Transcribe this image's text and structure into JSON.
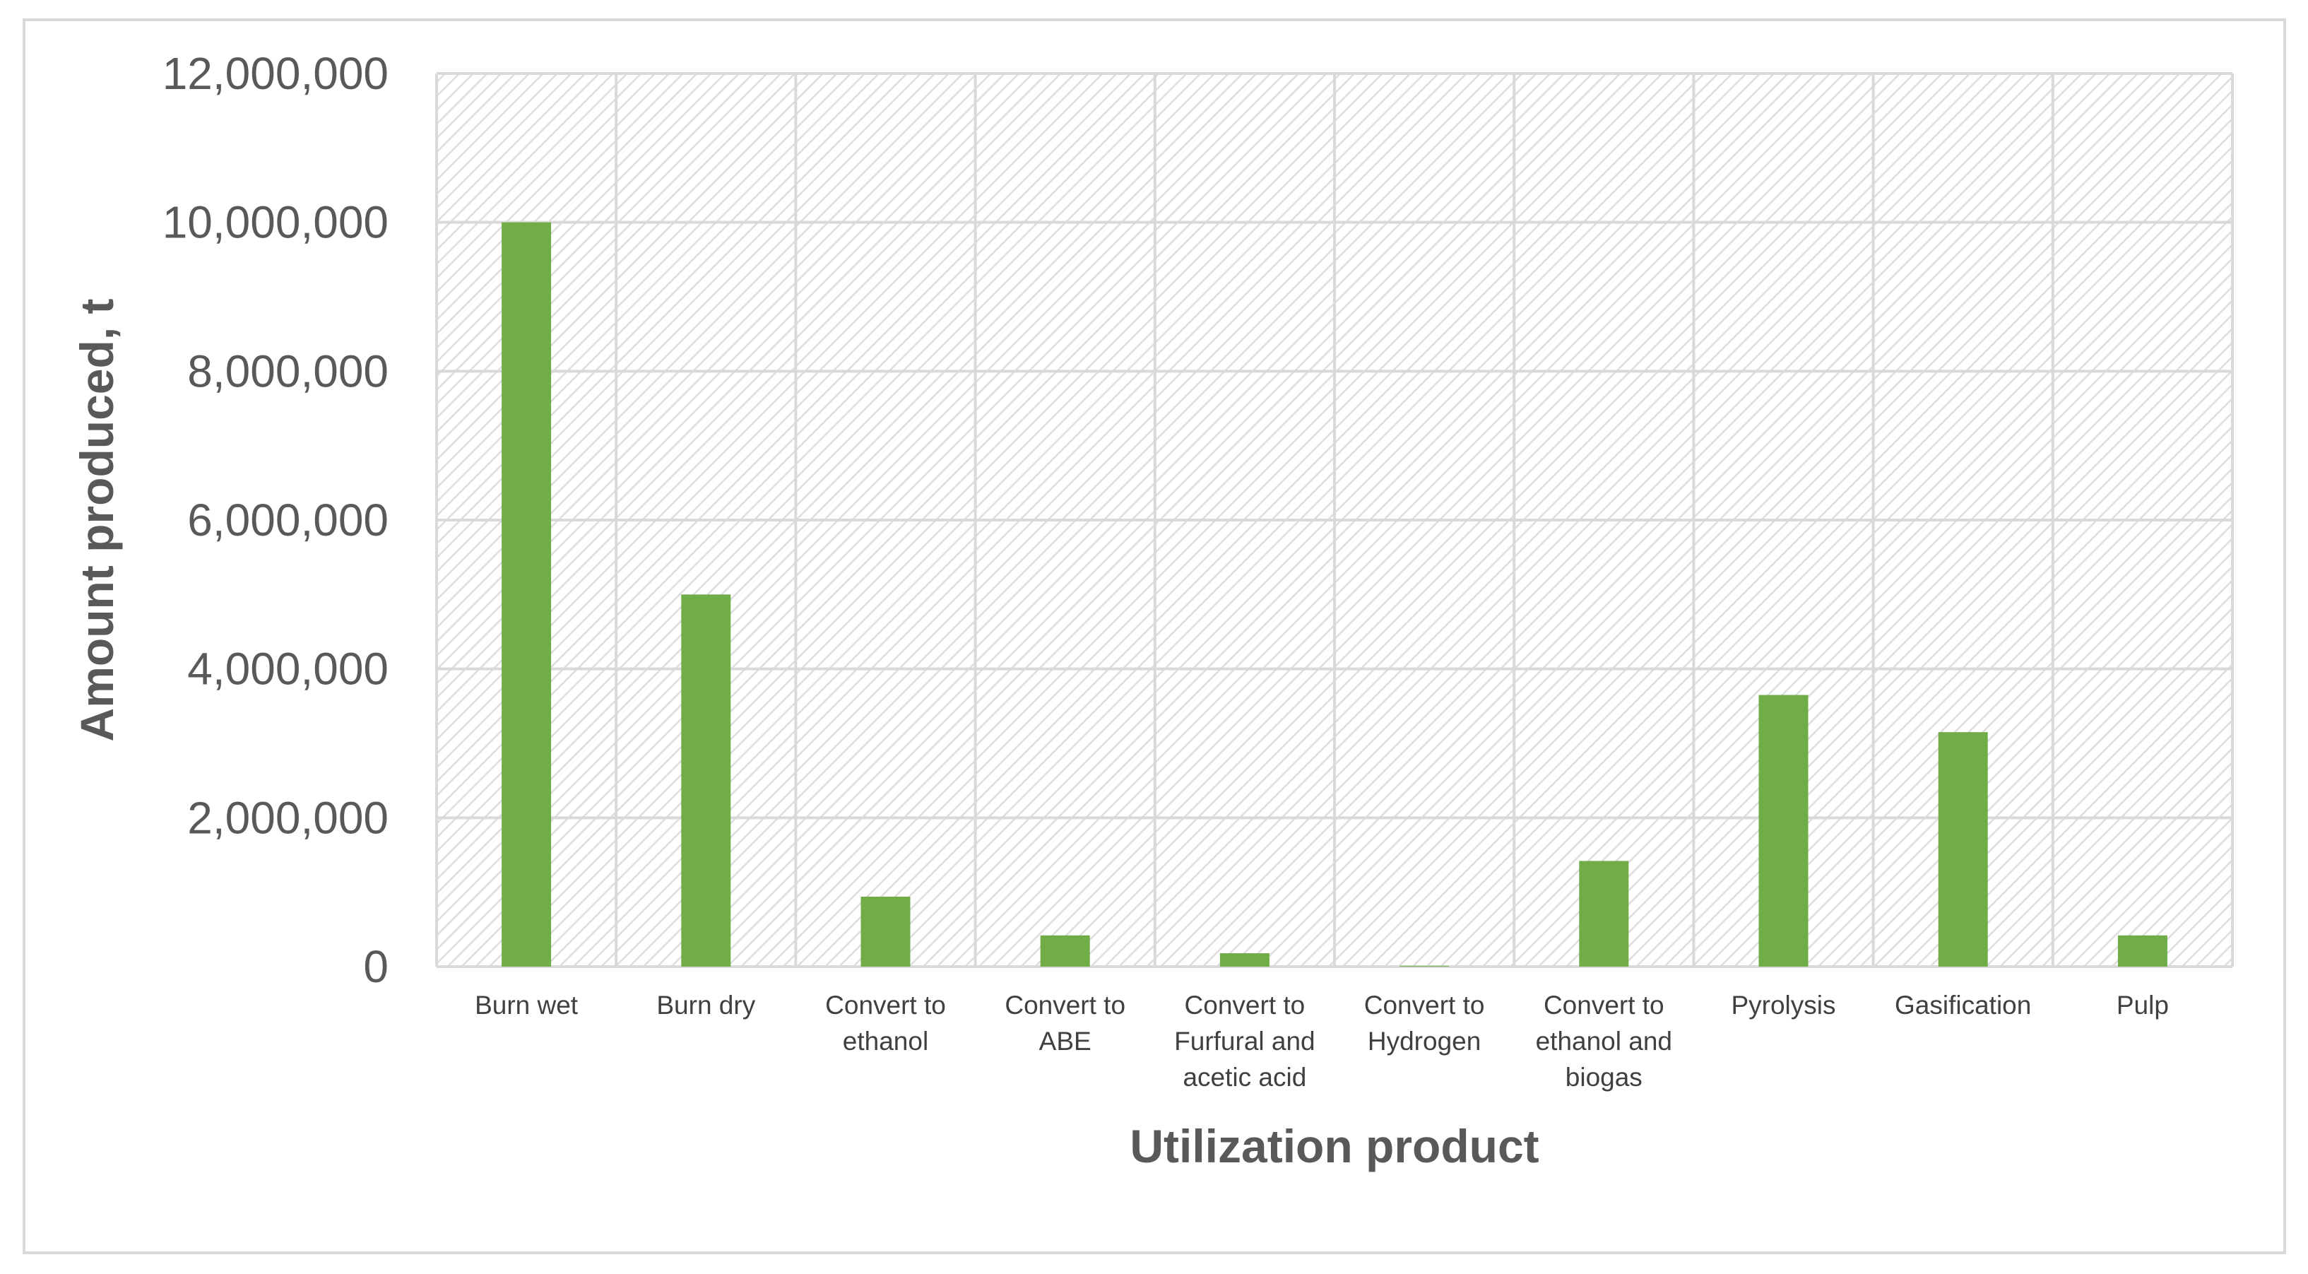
{
  "chart_data": {
    "type": "bar",
    "title": "",
    "xlabel": "Utilization product",
    "ylabel": "Amount produced, t",
    "categories": [
      [
        "Burn wet"
      ],
      [
        "Burn dry"
      ],
      [
        "Convert to",
        "ethanol"
      ],
      [
        "Convert to",
        "ABE"
      ],
      [
        "Convert to",
        "Furfural and",
        "acetic acid"
      ],
      [
        "Convert to",
        "Hydrogen"
      ],
      [
        "Convert to",
        "ethanol and",
        "biogas"
      ],
      [
        "Pyrolysis"
      ],
      [
        "Gasification"
      ],
      [
        "Pulp"
      ]
    ],
    "values": [
      10000000,
      5000000,
      940000,
      420000,
      180000,
      10000,
      1420000,
      3650000,
      3150000,
      420000
    ],
    "ylim": [
      0,
      12000000
    ],
    "yticks": [
      {
        "value": 0,
        "label": "0"
      },
      {
        "value": 2000000,
        "label": "2,000,000"
      },
      {
        "value": 4000000,
        "label": "4,000,000"
      },
      {
        "value": 6000000,
        "label": "6,000,000"
      },
      {
        "value": 8000000,
        "label": "8,000,000"
      },
      {
        "value": 10000000,
        "label": "10,000,000"
      },
      {
        "value": 12000000,
        "label": "12,000,000"
      }
    ],
    "grid": true,
    "legend": "none",
    "colors": {
      "bar": "#70AD47",
      "grid": "#D9D9D9",
      "hatch": "#DDDDDD",
      "border": "#D9D9D9"
    }
  }
}
